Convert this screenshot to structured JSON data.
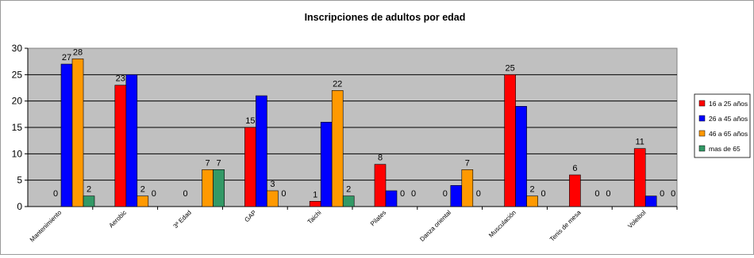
{
  "chart_data": {
    "type": "bar",
    "title": "Inscripciones de adultos por edad",
    "xlabel": "",
    "ylabel": "",
    "ylim": [
      0,
      30
    ],
    "yticks": [
      0,
      5,
      10,
      15,
      20,
      25,
      30
    ],
    "grid": true,
    "legend_position": "right",
    "categories": [
      "Mantenimiento",
      "Aerobic",
      "3ª Edad",
      "GAP",
      "Taichi",
      "Pilates",
      "Danza oriental",
      "Musculación",
      "Tenis de mesa",
      "Voleibol"
    ],
    "series": [
      {
        "name": "16 a 25 años",
        "color": "#ff0000",
        "values": [
          0,
          23,
          0,
          15,
          1,
          8,
          0,
          25,
          6,
          11
        ]
      },
      {
        "name": "26 a 45 años",
        "color": "#0000ff",
        "values": [
          27,
          25,
          null,
          21,
          16,
          3,
          4,
          19,
          null,
          2
        ]
      },
      {
        "name": "46 a 65 años",
        "color": "#ff9900",
        "values": [
          28,
          2,
          7,
          3,
          22,
          0,
          7,
          2,
          0,
          0
        ]
      },
      {
        "name": "mas de 65",
        "color": "#339966",
        "values": [
          2,
          0,
          7,
          0,
          2,
          0,
          0,
          0,
          0,
          0
        ]
      }
    ],
    "data_labels": [
      [
        "0",
        "27",
        "28",
        "2"
      ],
      [
        "23",
        "",
        "2",
        "0"
      ],
      [
        "0",
        "",
        "7",
        "7"
      ],
      [
        "15",
        "",
        "3",
        "0"
      ],
      [
        "1",
        "",
        "22",
        "2"
      ],
      [
        "8",
        "",
        "0",
        "0"
      ],
      [
        "0",
        "",
        "7",
        "0"
      ],
      [
        "25",
        "",
        "2",
        "0"
      ],
      [
        "6",
        "",
        "0",
        "0"
      ],
      [
        "11",
        "",
        "0",
        "0"
      ]
    ],
    "plot_background": "#c0c0c0"
  }
}
